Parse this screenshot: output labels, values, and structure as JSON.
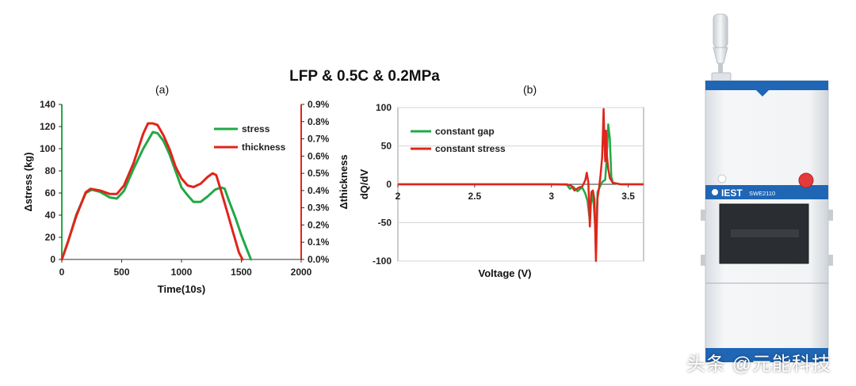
{
  "title": "LFP & 0.5C & 0.2MPa",
  "colors": {
    "green": "#22a845",
    "red": "#e0251b",
    "blue": "#1f66b5",
    "button_red": "#e53a3a"
  },
  "device": {
    "brand": "IEST",
    "model": "SWE2110"
  },
  "watermark": "头条 @元能科技",
  "chart_data": [
    {
      "type": "line",
      "panel": "(a)",
      "xlabel": "Time(10s)",
      "ylabel": "Δstress (kg)",
      "y2label": "Δthickness",
      "xlim": [
        0,
        2000
      ],
      "ylim": [
        0,
        140
      ],
      "y2lim": [
        0,
        0.009
      ],
      "x_ticks": [
        "0",
        "500",
        "1000",
        "1500",
        "2000"
      ],
      "y_ticks": [
        "0",
        "20",
        "40",
        "60",
        "80",
        "100",
        "120",
        "140"
      ],
      "y2_ticks": [
        "0.0%",
        "0.1%",
        "0.2%",
        "0.3%",
        "0.4%",
        "0.5%",
        "0.6%",
        "0.7%",
        "0.8%",
        "0.9%"
      ],
      "legend": "top-right",
      "series": [
        {
          "name": "stress",
          "color": "#22a845",
          "axis": "left",
          "x": [
            0,
            50,
            120,
            200,
            250,
            320,
            400,
            460,
            520,
            600,
            680,
            760,
            800,
            850,
            900,
            950,
            1000,
            1050,
            1100,
            1160,
            1220,
            1280,
            1330,
            1360,
            1400,
            1450,
            1500,
            1550,
            1580
          ],
          "y": [
            0,
            15,
            40,
            60,
            63,
            61,
            56,
            55,
            62,
            82,
            100,
            115,
            114,
            107,
            95,
            80,
            65,
            58,
            52,
            52,
            57,
            63,
            65,
            64,
            52,
            38,
            22,
            8,
            0
          ]
        },
        {
          "name": "thickness",
          "color": "#e0251b",
          "axis": "right",
          "x": [
            0,
            50,
            120,
            200,
            240,
            320,
            400,
            460,
            520,
            600,
            680,
            720,
            760,
            800,
            850,
            900,
            950,
            1000,
            1050,
            1100,
            1160,
            1220,
            1260,
            1290,
            1330,
            1380,
            1430,
            1480,
            1510
          ],
          "y": [
            0,
            0.001,
            0.0025,
            0.0039,
            0.0041,
            0.004,
            0.0038,
            0.0038,
            0.0043,
            0.0056,
            0.0073,
            0.0079,
            0.0079,
            0.0078,
            0.0072,
            0.0064,
            0.0054,
            0.0047,
            0.0043,
            0.0042,
            0.0044,
            0.0048,
            0.005,
            0.0049,
            0.004,
            0.0028,
            0.0016,
            0.0004,
            0
          ]
        }
      ]
    },
    {
      "type": "line",
      "panel": "(b)",
      "xlabel": "Voltage (V)",
      "ylabel": "dQ/dV",
      "xlim": [
        2,
        3.6
      ],
      "ylim": [
        -100,
        100
      ],
      "x_ticks": [
        "2",
        "2.5",
        "3",
        "3.5"
      ],
      "y_ticks": [
        "-100",
        "-50",
        "0",
        "50",
        "100"
      ],
      "legend": "top-left",
      "series": [
        {
          "name": "constant gap",
          "color": "#22a845",
          "x": [
            2.0,
            2.5,
            3.0,
            3.1,
            3.12,
            3.14,
            3.17,
            3.2,
            3.22,
            3.235,
            3.25,
            3.26,
            3.275,
            3.29,
            3.3,
            3.33,
            3.35,
            3.36,
            3.37,
            3.38,
            3.39,
            3.4,
            3.45,
            3.6
          ],
          "y": [
            0,
            0,
            0,
            -0.5,
            -6,
            -3,
            -9,
            -4,
            -12,
            -22,
            -48,
            -12,
            -25,
            -70,
            -10,
            3,
            6,
            35,
            78,
            60,
            10,
            2,
            0,
            0
          ]
        },
        {
          "name": "constant stress",
          "color": "#e0251b",
          "x": [
            2.0,
            2.5,
            3.0,
            3.1,
            3.13,
            3.15,
            3.18,
            3.2,
            3.22,
            3.23,
            3.24,
            3.25,
            3.26,
            3.27,
            3.28,
            3.29,
            3.3,
            3.31,
            3.32,
            3.33,
            3.34,
            3.345,
            3.35,
            3.355,
            3.36,
            3.37,
            3.38,
            3.4,
            3.45,
            3.6
          ],
          "y": [
            0,
            0,
            0,
            0,
            -2,
            -8,
            -4,
            -3,
            5,
            15,
            3,
            -55,
            -10,
            -8,
            -20,
            -100,
            -18,
            -5,
            12,
            35,
            98,
            55,
            30,
            70,
            40,
            20,
            8,
            2,
            0,
            0
          ]
        }
      ]
    }
  ]
}
